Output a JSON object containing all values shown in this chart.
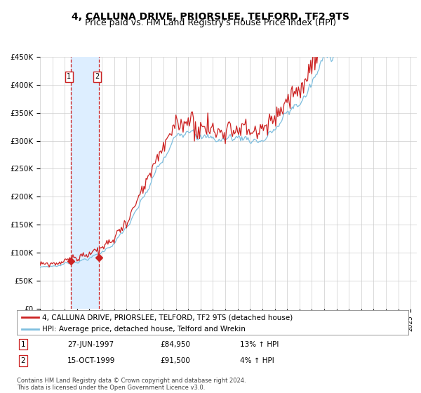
{
  "title": "4, CALLUNA DRIVE, PRIORSLEE, TELFORD, TF2 9TS",
  "subtitle": "Price paid vs. HM Land Registry's House Price Index (HPI)",
  "ylim": [
    0,
    450000
  ],
  "yticks": [
    0,
    50000,
    100000,
    150000,
    200000,
    250000,
    300000,
    350000,
    400000,
    450000
  ],
  "ytick_labels": [
    "£0",
    "£50K",
    "£100K",
    "£150K",
    "£200K",
    "£250K",
    "£300K",
    "£350K",
    "£400K",
    "£450K"
  ],
  "sale1_date": 1997.49,
  "sale1_price": 84950,
  "sale1_label": "1",
  "sale1_date_str": "27-JUN-1997",
  "sale1_price_str": "£84,950",
  "sale1_hpi_str": "13% ↑ HPI",
  "sale2_date": 1999.79,
  "sale2_price": 91500,
  "sale2_label": "2",
  "sale2_date_str": "15-OCT-1999",
  "sale2_price_str": "£91,500",
  "sale2_hpi_str": "4% ↑ HPI",
  "hpi_line_color": "#7fbfdf",
  "price_line_color": "#cc2222",
  "sale_marker_color": "#cc2222",
  "sale_box_color": "#cc2222",
  "vline_color": "#cc2222",
  "shade_color": "#ddeeff",
  "grid_color": "#cccccc",
  "bg_color": "#ffffff",
  "legend_line1": "4, CALLUNA DRIVE, PRIORSLEE, TELFORD, TF2 9TS (detached house)",
  "legend_line2": "HPI: Average price, detached house, Telford and Wrekin",
  "footer": "Contains HM Land Registry data © Crown copyright and database right 2024.\nThis data is licensed under the Open Government Licence v3.0.",
  "title_fontsize": 10,
  "subtitle_fontsize": 9,
  "xlim_start": 1995.0,
  "xlim_end": 2025.5
}
